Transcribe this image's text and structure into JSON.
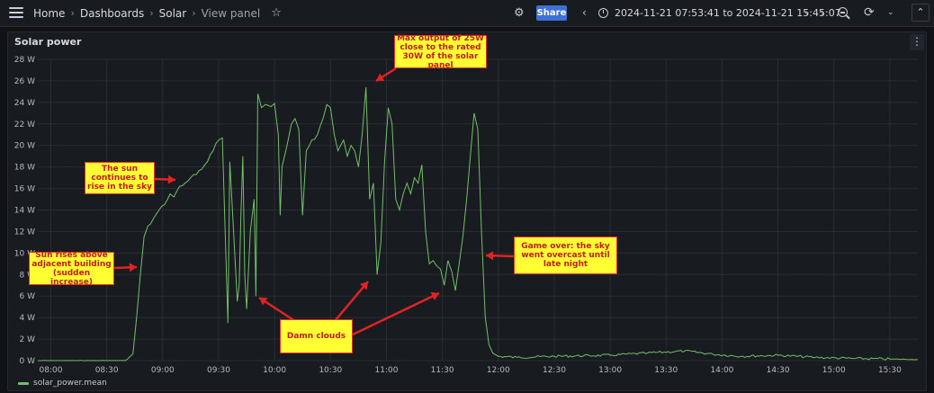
{
  "breadcrumbs": [
    "Home",
    "Dashboards",
    "Solar",
    "View panel"
  ],
  "toolbar": {
    "share_label": "Share",
    "time_range": "2024-11-21 07:53:41 to 2024-11-21 15:45:07"
  },
  "panel": {
    "title": "Solar power"
  },
  "annotations": {
    "max_output": "Max output of 25W close to the rated 30W of the solar panel",
    "sun_rise": "The sun continues to rise in the sky",
    "sun_rises_above": "Sun rises above adjacent building (sudden increase)",
    "damn_clouds": "Damn clouds",
    "game_over": "Game over: the sky went overcast until late night"
  },
  "colors": {
    "series": "#73bf69",
    "annotation_bg": "#ffff33",
    "annotation_border": "#e53030",
    "share_btn": "#3d71d9"
  },
  "chart_data": {
    "type": "line",
    "title": "Solar power",
    "xlabel": "",
    "ylabel": "",
    "xlim": [
      "07:53",
      "15:45"
    ],
    "ylim": [
      0,
      28
    ],
    "grid": true,
    "legend_placement": "bottom-left",
    "y_ticks": [
      "0 W",
      "2 W",
      "4 W",
      "6 W",
      "8 W",
      "10 W",
      "12 W",
      "14 W",
      "16 W",
      "18 W",
      "20 W",
      "22 W",
      "24 W",
      "26 W",
      "28 W"
    ],
    "x_ticks": [
      "08:00",
      "08:30",
      "09:00",
      "09:30",
      "10:00",
      "10:30",
      "11:00",
      "11:30",
      "12:00",
      "12:30",
      "13:00",
      "13:30",
      "14:00",
      "14:30",
      "15:00",
      "15:30"
    ],
    "series": [
      {
        "name": "solar_power.mean",
        "points": [
          [
            "07:53",
            0
          ],
          [
            "08:40",
            0
          ],
          [
            "08:44",
            0.6
          ],
          [
            "08:46",
            4
          ],
          [
            "08:48",
            8
          ],
          [
            "08:50",
            11.5
          ],
          [
            "08:52",
            12.5
          ],
          [
            "08:55",
            13.2
          ],
          [
            "08:58",
            14
          ],
          [
            "09:01",
            14.5
          ],
          [
            "09:04",
            15.5
          ],
          [
            "09:06",
            15.2
          ],
          [
            "09:09",
            16.2
          ],
          [
            "09:12",
            16.5
          ],
          [
            "09:15",
            17
          ],
          [
            "09:18",
            17.3
          ],
          [
            "09:21",
            17.8
          ],
          [
            "09:24",
            18.5
          ],
          [
            "09:27",
            19.5
          ],
          [
            "09:30",
            20.5
          ],
          [
            "09:32",
            20.7
          ],
          [
            "09:34",
            9
          ],
          [
            "09:35",
            3.5
          ],
          [
            "09:36",
            18.5
          ],
          [
            "09:38",
            12
          ],
          [
            "09:40",
            5.5
          ],
          [
            "09:41",
            7
          ],
          [
            "09:42",
            14
          ],
          [
            "09:43",
            19
          ],
          [
            "09:44",
            8
          ],
          [
            "09:45",
            4.8
          ],
          [
            "09:47",
            12
          ],
          [
            "09:49",
            15
          ],
          [
            "09:50",
            6
          ],
          [
            "09:51",
            24.8
          ],
          [
            "09:53",
            23.5
          ],
          [
            "09:55",
            23.8
          ],
          [
            "09:58",
            23.6
          ],
          [
            "10:00",
            23.9
          ],
          [
            "10:02",
            21
          ],
          [
            "10:03",
            13.5
          ],
          [
            "10:04",
            18
          ],
          [
            "10:06",
            19.5
          ],
          [
            "10:09",
            22
          ],
          [
            "10:11",
            22.5
          ],
          [
            "10:13",
            21.5
          ],
          [
            "10:15",
            13.5
          ],
          [
            "10:17",
            19.5
          ],
          [
            "10:20",
            20.5
          ],
          [
            "10:23",
            21
          ],
          [
            "10:26",
            22.5
          ],
          [
            "10:28",
            23.8
          ],
          [
            "10:30",
            23.5
          ],
          [
            "10:32",
            21
          ],
          [
            "10:34",
            19.5
          ],
          [
            "10:37",
            20.5
          ],
          [
            "10:39",
            19
          ],
          [
            "10:41",
            20
          ],
          [
            "10:43",
            19.5
          ],
          [
            "10:45",
            18
          ],
          [
            "10:47",
            21
          ],
          [
            "10:49",
            25.4
          ],
          [
            "10:51",
            15
          ],
          [
            "10:53",
            16.5
          ],
          [
            "10:55",
            8
          ],
          [
            "10:57",
            11
          ],
          [
            "10:59",
            18.5
          ],
          [
            "11:01",
            23.5
          ],
          [
            "11:03",
            22
          ],
          [
            "11:05",
            15
          ],
          [
            "11:07",
            14
          ],
          [
            "11:09",
            15.5
          ],
          [
            "11:11",
            16.5
          ],
          [
            "11:13",
            15.5
          ],
          [
            "11:15",
            17
          ],
          [
            "11:17",
            16.5
          ],
          [
            "11:19",
            18.2
          ],
          [
            "11:21",
            12
          ],
          [
            "11:23",
            9
          ],
          [
            "11:25",
            9.3
          ],
          [
            "11:27",
            8.8
          ],
          [
            "11:29",
            8.5
          ],
          [
            "11:31",
            7
          ],
          [
            "11:33",
            9.3
          ],
          [
            "11:35",
            8.3
          ],
          [
            "11:37",
            6.5
          ],
          [
            "11:39",
            9
          ],
          [
            "11:41",
            11.5
          ],
          [
            "11:43",
            15
          ],
          [
            "11:45",
            19
          ],
          [
            "11:47",
            23
          ],
          [
            "11:49",
            21.5
          ],
          [
            "11:51",
            12
          ],
          [
            "11:53",
            4
          ],
          [
            "11:55",
            1.5
          ],
          [
            "11:57",
            0.7
          ],
          [
            "12:00",
            0.4
          ],
          [
            "12:10",
            0.3
          ],
          [
            "12:30",
            0.4
          ],
          [
            "13:00",
            0.5
          ],
          [
            "13:20",
            0.7
          ],
          [
            "13:40",
            0.9
          ],
          [
            "13:55",
            0.6
          ],
          [
            "14:10",
            0.4
          ],
          [
            "14:30",
            0.5
          ],
          [
            "14:50",
            0.3
          ],
          [
            "15:10",
            0.2
          ],
          [
            "15:30",
            0.15
          ],
          [
            "15:45",
            0.1
          ]
        ]
      }
    ]
  }
}
